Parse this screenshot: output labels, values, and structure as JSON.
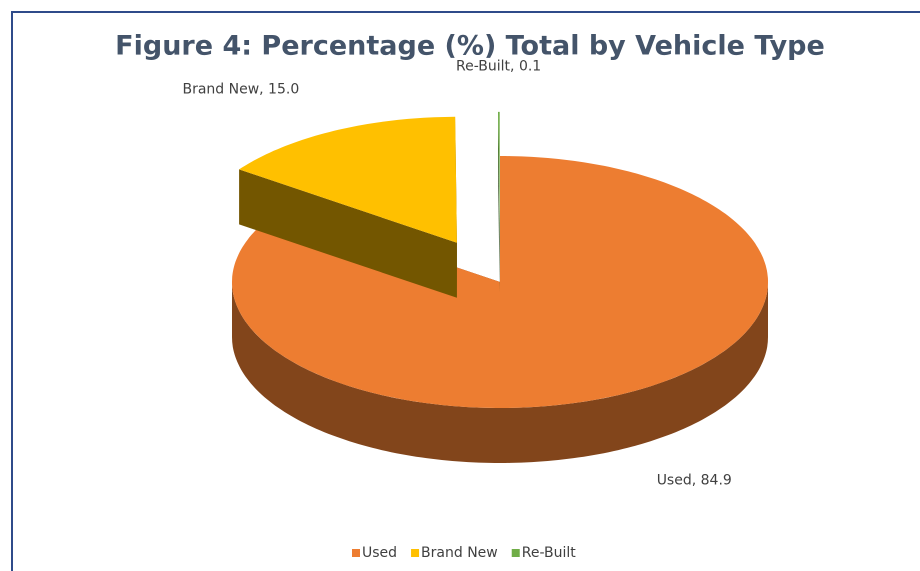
{
  "chart_data": {
    "type": "pie3d",
    "title": "Figure 4: Percentage (%) Total by Vehicle Type",
    "categories": [
      "Used",
      "Brand New",
      "Re-Built"
    ],
    "values": [
      84.9,
      15.0,
      0.1
    ],
    "value_labels": [
      "Used, 84.9",
      "Brand New, 15.0",
      "Re-Built, 0.1"
    ],
    "colors": [
      "#ed7d31",
      "#ffc000",
      "#70ad47"
    ],
    "legend": "bottom"
  }
}
